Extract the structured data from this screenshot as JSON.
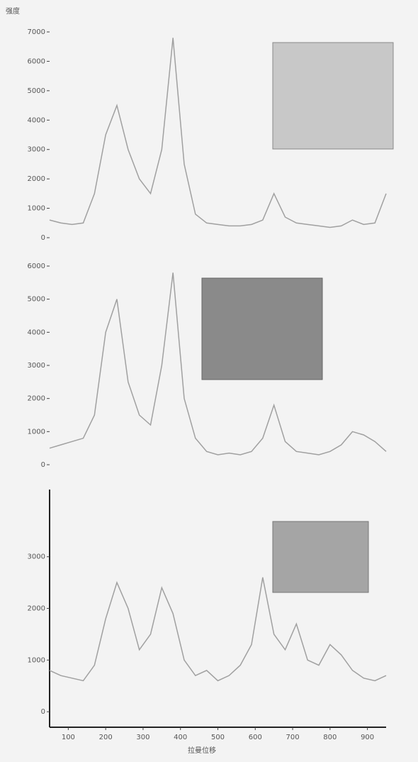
{
  "chart_data": [
    {
      "type": "line",
      "ylabel": "强度",
      "x": [
        50,
        80,
        110,
        140,
        170,
        200,
        230,
        260,
        290,
        320,
        350,
        380,
        410,
        440,
        470,
        500,
        530,
        560,
        590,
        620,
        650,
        680,
        710,
        740,
        770,
        800,
        830,
        860,
        890,
        920,
        950
      ],
      "series": [
        {
          "color": "#a0a0a0",
          "values": [
            600,
            500,
            450,
            500,
            1500,
            3500,
            4500,
            3000,
            2000,
            1500,
            3000,
            6800,
            2500,
            800,
            500,
            450,
            400,
            400,
            450,
            600,
            1500,
            700,
            500,
            450,
            400,
            350,
            400,
            600,
            450,
            500,
            1500
          ]
        }
      ],
      "xlim": [
        50,
        950
      ],
      "ylim": [
        0,
        7000
      ],
      "yticks": [
        0,
        1000,
        2000,
        3000,
        4000,
        5000,
        6000,
        7000
      ]
    },
    {
      "type": "line",
      "x": [
        50,
        80,
        110,
        140,
        170,
        200,
        230,
        260,
        290,
        320,
        350,
        380,
        410,
        440,
        470,
        500,
        530,
        560,
        590,
        620,
        650,
        680,
        710,
        740,
        770,
        800,
        830,
        860,
        890,
        920,
        950
      ],
      "series": [
        {
          "color": "#a0a0a0",
          "values": [
            500,
            600,
            700,
            800,
            1500,
            4000,
            5000,
            2500,
            1500,
            1200,
            3000,
            5800,
            2000,
            800,
            400,
            300,
            350,
            300,
            400,
            800,
            1800,
            700,
            400,
            350,
            300,
            400,
            600,
            1000,
            900,
            700,
            400
          ]
        }
      ],
      "xlim": [
        50,
        950
      ],
      "ylim": [
        0,
        6000
      ],
      "yticks": [
        0,
        1000,
        2000,
        3000,
        4000,
        5000,
        6000
      ]
    },
    {
      "type": "line",
      "xlabel": "拉曼位移",
      "x": [
        50,
        80,
        110,
        140,
        170,
        200,
        230,
        260,
        290,
        320,
        350,
        380,
        410,
        440,
        470,
        500,
        530,
        560,
        590,
        620,
        650,
        680,
        710,
        740,
        770,
        800,
        830,
        860,
        890,
        920,
        950
      ],
      "series": [
        {
          "color": "#a0a0a0",
          "values": [
            800,
            700,
            650,
            600,
            900,
            1800,
            2500,
            2000,
            1200,
            1500,
            2400,
            1900,
            1000,
            700,
            800,
            600,
            700,
            900,
            1300,
            2600,
            1500,
            1200,
            1700,
            1000,
            900,
            1300,
            1100,
            800,
            650,
            600,
            700
          ]
        }
      ],
      "xlim": [
        50,
        950
      ],
      "ylim": [
        -300,
        4300
      ],
      "yticks": [
        0,
        1000,
        2000,
        3000
      ],
      "xticks": [
        100,
        200,
        300,
        400,
        500,
        600,
        700,
        800,
        900
      ]
    }
  ]
}
